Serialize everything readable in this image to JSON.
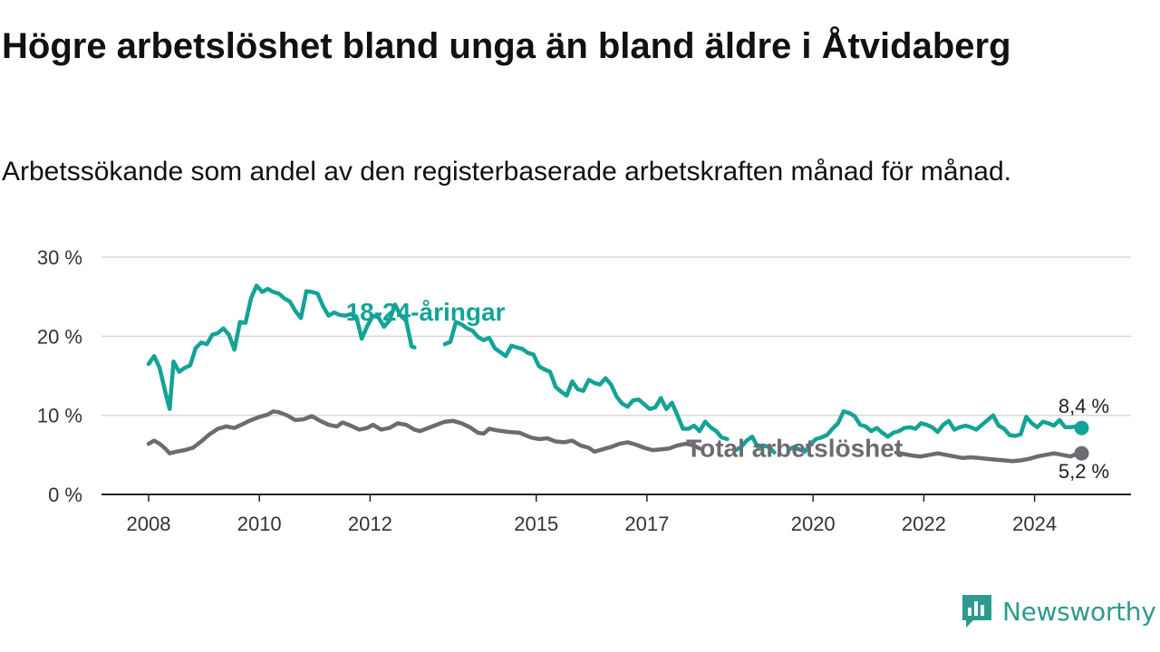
{
  "title": "Högre arbetslöshet bland unga än bland äldre i Åtvidaberg",
  "subtitle": "Arbetssökande som andel av den registerbaserade arbetskraften månad för månad.",
  "brand": {
    "name": "Newsworthy",
    "icon": "newsworthy-logo-icon"
  },
  "colors": {
    "youth": "#14a396",
    "total": "#6d6b72",
    "grid": "#d9d9d9",
    "axis": "#222222"
  },
  "chart_data": {
    "type": "line",
    "title": "Högre arbetslöshet bland unga än bland äldre i Åtvidaberg",
    "subtitle": "Arbetssökande som andel av den registerbaserade arbetskraften månad för månad.",
    "xlabel": "",
    "ylabel": "",
    "ylim": [
      0,
      30
    ],
    "xlim": [
      2008.0,
      2024.9
    ],
    "yticks": [
      0,
      10,
      20,
      30
    ],
    "ytick_labels": [
      "0 %",
      "10 %",
      "20 %",
      "30 %"
    ],
    "xticks": [
      2008,
      2010,
      2012,
      2015,
      2017,
      2020,
      2022,
      2024
    ],
    "xtick_labels": [
      "2008",
      "2010",
      "2012",
      "2015",
      "2017",
      "2020",
      "2022",
      "2024"
    ],
    "grid": "horizontal",
    "legend": "direct labels",
    "series": [
      {
        "name": "18-24-åringar",
        "color": "#14a396",
        "end_label": "8,4 %",
        "points": [
          [
            2008.0,
            16.5
          ],
          [
            2008.1,
            17.5
          ],
          [
            2008.2,
            16.0
          ],
          [
            2008.3,
            13.0
          ],
          [
            2008.38,
            10.8
          ],
          [
            2008.45,
            16.8
          ],
          [
            2008.55,
            15.5
          ],
          [
            2008.65,
            16.0
          ],
          [
            2008.75,
            16.3
          ],
          [
            2008.85,
            18.5
          ],
          [
            2008.95,
            19.2
          ],
          [
            2009.05,
            19.0
          ],
          [
            2009.15,
            20.2
          ],
          [
            2009.25,
            20.4
          ],
          [
            2009.35,
            21.0
          ],
          [
            2009.45,
            20.2
          ],
          [
            2009.55,
            18.3
          ],
          [
            2009.65,
            21.8
          ],
          [
            2009.75,
            21.7
          ],
          [
            2009.85,
            24.8
          ],
          [
            2009.95,
            26.4
          ],
          [
            2010.05,
            25.6
          ],
          [
            2010.15,
            26.0
          ],
          [
            2010.25,
            25.6
          ],
          [
            2010.35,
            25.4
          ],
          [
            2010.45,
            24.8
          ],
          [
            2010.55,
            24.4
          ],
          [
            2010.65,
            23.2
          ],
          [
            2010.75,
            22.3
          ],
          [
            2010.85,
            25.7
          ],
          [
            2010.95,
            25.6
          ],
          [
            2011.05,
            25.4
          ],
          [
            2011.15,
            23.8
          ],
          [
            2011.25,
            22.6
          ],
          [
            2011.35,
            23.0
          ],
          [
            2011.45,
            22.7
          ],
          [
            2011.55,
            22.6
          ],
          [
            2011.65,
            22.8
          ],
          [
            2011.75,
            22.5
          ],
          [
            2011.85,
            19.7
          ],
          [
            2011.95,
            21.3
          ],
          [
            2012.05,
            22.6
          ],
          [
            2012.15,
            22.4
          ],
          [
            2012.25,
            21.2
          ],
          [
            2012.35,
            22.0
          ],
          [
            2012.45,
            24.0
          ],
          [
            2012.55,
            22.6
          ],
          [
            2012.65,
            22.0
          ],
          [
            2012.75,
            18.7
          ],
          [
            2012.8,
            18.6
          ]
        ],
        "points2": [
          [
            2013.35,
            19.0
          ],
          [
            2013.45,
            19.3
          ],
          [
            2013.55,
            21.8
          ],
          [
            2013.65,
            21.5
          ],
          [
            2013.75,
            21.0
          ],
          [
            2013.85,
            20.7
          ],
          [
            2013.95,
            19.9
          ],
          [
            2014.05,
            19.5
          ],
          [
            2014.15,
            19.8
          ],
          [
            2014.25,
            18.5
          ],
          [
            2014.35,
            18.0
          ],
          [
            2014.45,
            17.5
          ],
          [
            2014.55,
            18.8
          ],
          [
            2014.65,
            18.6
          ],
          [
            2014.75,
            18.4
          ],
          [
            2014.85,
            17.9
          ],
          [
            2014.95,
            17.7
          ],
          [
            2015.05,
            16.2
          ],
          [
            2015.15,
            15.8
          ],
          [
            2015.25,
            15.5
          ],
          [
            2015.35,
            13.6
          ],
          [
            2015.45,
            13.0
          ],
          [
            2015.55,
            12.5
          ],
          [
            2015.65,
            14.3
          ],
          [
            2015.75,
            13.3
          ],
          [
            2015.85,
            13.1
          ],
          [
            2015.95,
            14.5
          ],
          [
            2016.05,
            14.1
          ],
          [
            2016.15,
            13.9
          ],
          [
            2016.25,
            14.7
          ],
          [
            2016.35,
            13.9
          ],
          [
            2016.45,
            12.4
          ],
          [
            2016.55,
            11.5
          ],
          [
            2016.65,
            11.1
          ],
          [
            2016.75,
            11.9
          ],
          [
            2016.85,
            12.0
          ],
          [
            2016.95,
            11.4
          ],
          [
            2017.05,
            10.8
          ],
          [
            2017.15,
            11.0
          ],
          [
            2017.25,
            12.2
          ],
          [
            2017.35,
            10.8
          ],
          [
            2017.45,
            11.6
          ],
          [
            2017.55,
            10.0
          ],
          [
            2017.65,
            8.3
          ],
          [
            2017.75,
            8.3
          ],
          [
            2017.85,
            8.7
          ],
          [
            2017.95,
            8.0
          ],
          [
            2018.05,
            9.2
          ],
          [
            2018.15,
            8.5
          ],
          [
            2018.25,
            8.0
          ],
          [
            2018.35,
            7.2
          ],
          [
            2018.45,
            7.0
          ]
        ],
        "points3": [
          [
            2018.6,
            5.6
          ],
          [
            2018.7,
            6.0
          ],
          [
            2018.8,
            6.8
          ],
          [
            2018.9,
            7.3
          ],
          [
            2019.0,
            6.0
          ],
          [
            2019.1,
            6.2
          ],
          [
            2019.2,
            6.0
          ],
          [
            2019.3,
            5.3
          ]
        ],
        "points4": [
          [
            2019.55,
            5.6
          ],
          [
            2019.65,
            6.0
          ],
          [
            2019.75,
            5.7
          ],
          [
            2019.85,
            5.4
          ],
          [
            2019.95,
            6.3
          ],
          [
            2020.05,
            7.0
          ],
          [
            2020.15,
            7.2
          ],
          [
            2020.25,
            7.5
          ],
          [
            2020.35,
            8.3
          ],
          [
            2020.45,
            9.0
          ],
          [
            2020.55,
            10.5
          ],
          [
            2020.65,
            10.3
          ],
          [
            2020.75,
            9.9
          ],
          [
            2020.85,
            8.8
          ],
          [
            2020.95,
            8.6
          ],
          [
            2021.05,
            8.0
          ],
          [
            2021.15,
            8.4
          ],
          [
            2021.25,
            7.8
          ],
          [
            2021.35,
            7.3
          ],
          [
            2021.45,
            7.8
          ],
          [
            2021.55,
            8.0
          ],
          [
            2021.65,
            8.4
          ],
          [
            2021.75,
            8.5
          ],
          [
            2021.85,
            8.3
          ],
          [
            2021.95,
            9.0
          ],
          [
            2022.05,
            8.8
          ],
          [
            2022.15,
            8.5
          ],
          [
            2022.25,
            7.9
          ],
          [
            2022.35,
            8.8
          ],
          [
            2022.45,
            9.3
          ],
          [
            2022.55,
            8.2
          ],
          [
            2022.65,
            8.5
          ],
          [
            2022.75,
            8.7
          ],
          [
            2022.85,
            8.5
          ],
          [
            2022.95,
            8.2
          ],
          [
            2023.05,
            8.8
          ],
          [
            2023.15,
            9.4
          ],
          [
            2023.25,
            10.0
          ],
          [
            2023.35,
            8.7
          ],
          [
            2023.45,
            8.3
          ],
          [
            2023.55,
            7.5
          ],
          [
            2023.65,
            7.4
          ],
          [
            2023.75,
            7.6
          ],
          [
            2023.85,
            9.8
          ],
          [
            2023.95,
            9.0
          ],
          [
            2024.05,
            8.5
          ],
          [
            2024.15,
            9.2
          ],
          [
            2024.25,
            9.0
          ],
          [
            2024.35,
            8.7
          ],
          [
            2024.45,
            9.4
          ],
          [
            2024.55,
            8.5
          ],
          [
            2024.65,
            8.5
          ],
          [
            2024.75,
            8.6
          ],
          [
            2024.85,
            8.4
          ]
        ]
      },
      {
        "name": "Total arbetslöshet",
        "color": "#6d6b72",
        "end_label": "5,2 %",
        "points": [
          [
            2008.0,
            6.4
          ],
          [
            2008.1,
            6.8
          ],
          [
            2008.2,
            6.4
          ],
          [
            2008.3,
            5.8
          ],
          [
            2008.38,
            5.2
          ],
          [
            2008.5,
            5.4
          ],
          [
            2008.65,
            5.6
          ],
          [
            2008.8,
            5.9
          ],
          [
            2008.95,
            6.7
          ],
          [
            2009.1,
            7.6
          ],
          [
            2009.25,
            8.3
          ],
          [
            2009.4,
            8.6
          ],
          [
            2009.55,
            8.4
          ],
          [
            2009.7,
            8.9
          ],
          [
            2009.85,
            9.4
          ],
          [
            2010.0,
            9.8
          ],
          [
            2010.15,
            10.1
          ],
          [
            2010.25,
            10.5
          ],
          [
            2010.35,
            10.4
          ],
          [
            2010.5,
            10.0
          ],
          [
            2010.65,
            9.4
          ],
          [
            2010.8,
            9.5
          ],
          [
            2010.95,
            9.9
          ],
          [
            2011.1,
            9.3
          ],
          [
            2011.25,
            8.8
          ],
          [
            2011.4,
            8.6
          ],
          [
            2011.5,
            9.1
          ],
          [
            2011.65,
            8.7
          ],
          [
            2011.8,
            8.2
          ],
          [
            2011.95,
            8.4
          ],
          [
            2012.05,
            8.8
          ],
          [
            2012.2,
            8.2
          ],
          [
            2012.35,
            8.4
          ],
          [
            2012.5,
            9.0
          ],
          [
            2012.65,
            8.8
          ],
          [
            2012.8,
            8.2
          ],
          [
            2012.9,
            8.0
          ],
          [
            2013.05,
            8.4
          ],
          [
            2013.2,
            8.8
          ],
          [
            2013.35,
            9.2
          ],
          [
            2013.5,
            9.3
          ],
          [
            2013.65,
            9.0
          ],
          [
            2013.8,
            8.5
          ],
          [
            2013.95,
            7.8
          ],
          [
            2014.05,
            7.7
          ],
          [
            2014.15,
            8.3
          ],
          [
            2014.3,
            8.1
          ],
          [
            2014.5,
            7.9
          ],
          [
            2014.7,
            7.8
          ],
          [
            2014.9,
            7.2
          ],
          [
            2015.05,
            7.0
          ],
          [
            2015.2,
            7.1
          ],
          [
            2015.35,
            6.7
          ],
          [
            2015.5,
            6.6
          ],
          [
            2015.65,
            6.8
          ],
          [
            2015.8,
            6.2
          ],
          [
            2015.95,
            5.9
          ],
          [
            2016.05,
            5.4
          ],
          [
            2016.2,
            5.7
          ],
          [
            2016.35,
            6.0
          ],
          [
            2016.5,
            6.4
          ],
          [
            2016.65,
            6.6
          ],
          [
            2016.8,
            6.3
          ],
          [
            2016.95,
            5.9
          ],
          [
            2017.1,
            5.6
          ],
          [
            2017.25,
            5.7
          ],
          [
            2017.4,
            5.8
          ],
          [
            2017.55,
            6.2
          ],
          [
            2017.7,
            6.4
          ],
          [
            2017.85,
            6.2
          ],
          [
            2017.95,
            5.8
          ]
        ],
        "points2": [
          [
            2021.5,
            5.3
          ],
          [
            2021.65,
            5.1
          ],
          [
            2021.8,
            4.9
          ],
          [
            2021.95,
            4.8
          ],
          [
            2022.1,
            5.0
          ],
          [
            2022.25,
            5.2
          ],
          [
            2022.4,
            5.0
          ],
          [
            2022.55,
            4.8
          ],
          [
            2022.7,
            4.6
          ],
          [
            2022.85,
            4.7
          ],
          [
            2023.0,
            4.6
          ],
          [
            2023.15,
            4.5
          ],
          [
            2023.3,
            4.4
          ],
          [
            2023.45,
            4.3
          ],
          [
            2023.6,
            4.2
          ],
          [
            2023.75,
            4.3
          ],
          [
            2023.9,
            4.5
          ],
          [
            2024.05,
            4.8
          ],
          [
            2024.2,
            5.0
          ],
          [
            2024.35,
            5.2
          ],
          [
            2024.5,
            5.0
          ],
          [
            2024.65,
            4.8
          ],
          [
            2024.75,
            5.1
          ],
          [
            2024.85,
            5.2
          ]
        ]
      }
    ],
    "annotations": [
      {
        "text": "18-24-åringar",
        "series": "18-24-åringar",
        "x": 2013.0,
        "y": 23.0
      },
      {
        "text": "Total arbetslöshet",
        "series": "Total arbetslöshet",
        "x": 2019.5,
        "y": 4.2
      }
    ]
  }
}
